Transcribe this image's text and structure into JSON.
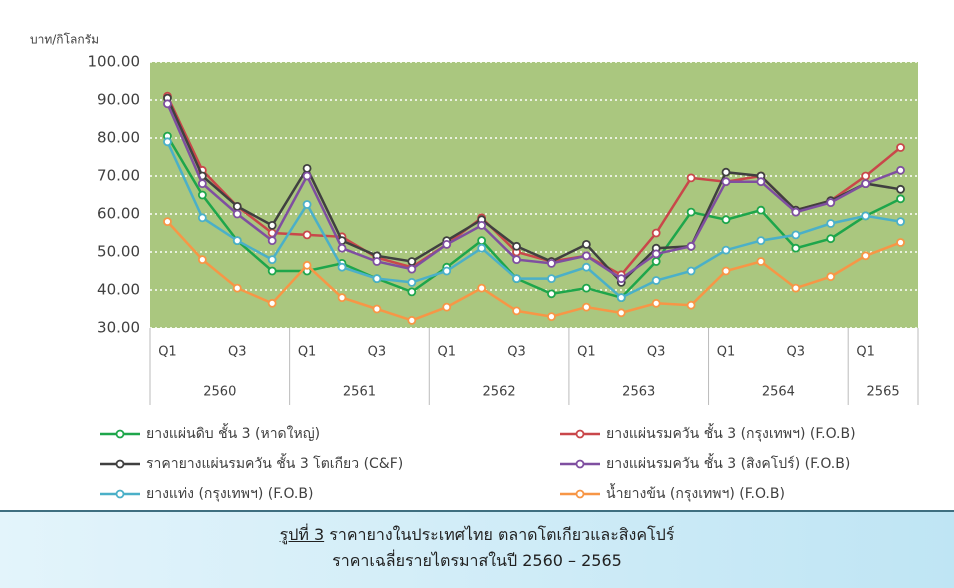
{
  "chart_data": {
    "type": "line",
    "y_axis_label": "บาท/กิโลกรัม",
    "categories": [
      "Q1",
      null,
      "Q3",
      null,
      "Q1",
      null,
      "Q3",
      null,
      "Q1",
      null,
      "Q3",
      null,
      "Q1",
      null,
      "Q3",
      null,
      "Q1",
      null,
      "Q3",
      null,
      "Q1",
      null
    ],
    "years": [
      "2560",
      "2561",
      "2562",
      "2563",
      "2564",
      "2565"
    ],
    "ylim": [
      30,
      100
    ],
    "yticks": [
      {
        "value": 30,
        "label": "30.00"
      },
      {
        "value": 40,
        "label": "40.00"
      },
      {
        "value": 50,
        "label": "50.00"
      },
      {
        "value": 60,
        "label": "60.00"
      },
      {
        "value": 70,
        "label": "70.00"
      },
      {
        "value": 80,
        "label": "80.00"
      },
      {
        "value": 90,
        "label": "90.00"
      },
      {
        "value": 100,
        "label": "100.00"
      }
    ],
    "grid": true,
    "plot_background": "#aac77f",
    "series": [
      {
        "name": "ยางแผ่นดิบ ชั้น 3 (หาดใหญ่)",
        "color": "#1ea64b",
        "values": [
          80.5,
          65,
          53,
          45,
          45,
          47,
          43,
          39.5,
          46,
          53,
          43,
          39,
          40.5,
          38,
          47.5,
          60.5,
          58.5,
          61,
          51,
          53.5,
          59.5,
          64
        ]
      },
      {
        "name": "ยางแผ่นรมควัน ชั้น 3 (กรุงเทพฯ) (F.O.B)",
        "color": "#c9474a",
        "values": [
          91,
          71.5,
          62,
          55,
          54.5,
          54,
          48.5,
          46,
          52,
          59,
          50,
          47.5,
          49,
          44,
          55,
          69.5,
          68.5,
          70,
          61,
          63.5,
          70,
          77.5
        ]
      },
      {
        "name": "ราคายางแผ่นรมควัน ชั้น 3 โตเกียว (C&F)",
        "color": "#404040",
        "values": [
          90.5,
          70,
          62,
          57,
          72,
          53,
          49,
          47.5,
          53,
          58.5,
          51.5,
          47.5,
          52,
          42,
          51,
          51.5,
          71,
          70,
          61,
          63.5,
          68,
          66.5
        ]
      },
      {
        "name": "ยางแผ่นรมควัน ชั้น 3 (สิงคโปร์) (F.O.B)",
        "color": "#7f4fa0",
        "values": [
          89,
          68,
          60,
          53,
          70,
          51,
          47.5,
          45.5,
          52,
          57,
          48,
          47,
          49,
          43,
          49.5,
          51.5,
          68.5,
          68.5,
          60.5,
          63,
          68,
          71.5
        ]
      },
      {
        "name": "ยางแท่ง (กรุงเทพฯ) (F.O.B)",
        "color": "#4bb0c8",
        "values": [
          79,
          59,
          53,
          48,
          62.5,
          46,
          43,
          42,
          45,
          51,
          43,
          43,
          46,
          38,
          42.5,
          45,
          50.5,
          53,
          54.5,
          57.5,
          59.5,
          58
        ]
      },
      {
        "name": "น้ำยางข้น (กรุงเทพฯ) (F.O.B)",
        "color": "#f79646",
        "values": [
          58,
          48,
          40.5,
          36.5,
          46.5,
          38,
          35,
          32,
          35.5,
          40.5,
          34.5,
          33,
          35.5,
          34,
          36.5,
          36,
          45,
          47.5,
          40.5,
          43.5,
          49,
          52.5
        ]
      }
    ]
  },
  "caption": {
    "label": "รูปที่ 3",
    "line1": " ราคายางในประเทศไทย ตลาดโตเกียวและสิงคโปร์",
    "line2": "ราคาเฉลี่ยรายไตรมาสในปี 2560 – 2565"
  }
}
